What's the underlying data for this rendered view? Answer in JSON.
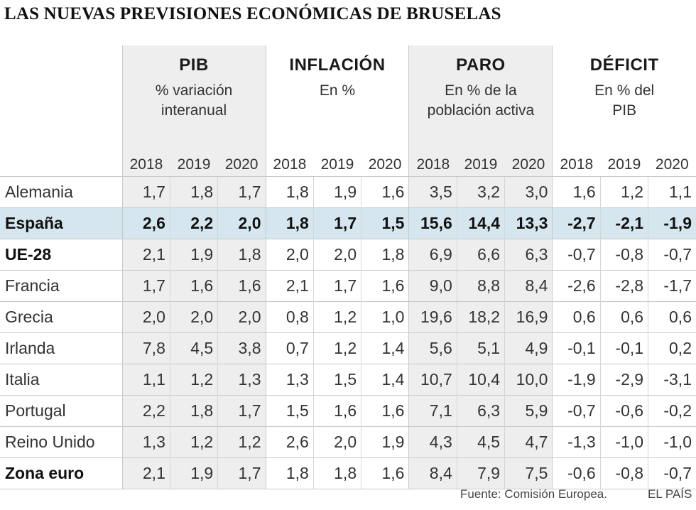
{
  "title": "LAS NUEVAS PREVISIONES ECONÓMICAS DE BRUSELAS",
  "footer": {
    "source": "Fuente: Comisión Europea.",
    "brand": "EL PAÍS"
  },
  "chart_data": {
    "type": "table",
    "title": "LAS NUEVAS PREVISIONES ECONÓMICAS DE BRUSELAS",
    "groups": [
      {
        "name": "PIB",
        "subtitle": [
          "% variación",
          "interanual"
        ],
        "years": [
          "2018",
          "2019",
          "2020"
        ]
      },
      {
        "name": "INFLACIÓN",
        "subtitle": [
          "En %"
        ],
        "years": [
          "2018",
          "2019",
          "2020"
        ]
      },
      {
        "name": "PARO",
        "subtitle": [
          "En % de la",
          "población activa"
        ],
        "years": [
          "2018",
          "2019",
          "2020"
        ]
      },
      {
        "name": "DÉFICIT",
        "subtitle": [
          "En % del",
          "PIB"
        ],
        "years": [
          "2018",
          "2019",
          "2020"
        ]
      }
    ],
    "rows": [
      {
        "label": "Alemania",
        "bold": false,
        "highlight": false,
        "values": [
          "1,7",
          "1,8",
          "1,7",
          "1,8",
          "1,9",
          "1,6",
          "3,5",
          "3,2",
          "3,0",
          "1,6",
          "1,2",
          "1,1"
        ]
      },
      {
        "label": "España",
        "bold": true,
        "highlight": true,
        "values": [
          "2,6",
          "2,2",
          "2,0",
          "1,8",
          "1,7",
          "1,5",
          "15,6",
          "14,4",
          "13,3",
          "-2,7",
          "-2,1",
          "-1,9"
        ]
      },
      {
        "label": "UE-28",
        "bold": true,
        "highlight": false,
        "values": [
          "2,1",
          "1,9",
          "1,8",
          "2,0",
          "2,0",
          "1,8",
          "6,9",
          "6,6",
          "6,3",
          "-0,7",
          "-0,8",
          "-0,7"
        ]
      },
      {
        "label": "Francia",
        "bold": false,
        "highlight": false,
        "values": [
          "1,7",
          "1,6",
          "1,6",
          "2,1",
          "1,7",
          "1,6",
          "9,0",
          "8,8",
          "8,4",
          "-2,6",
          "-2,8",
          "-1,7"
        ]
      },
      {
        "label": "Grecia",
        "bold": false,
        "highlight": false,
        "values": [
          "2,0",
          "2,0",
          "2,0",
          "0,8",
          "1,2",
          "1,0",
          "19,6",
          "18,2",
          "16,9",
          "0,6",
          "0,6",
          "0,6"
        ]
      },
      {
        "label": "Irlanda",
        "bold": false,
        "highlight": false,
        "values": [
          "7,8",
          "4,5",
          "3,8",
          "0,7",
          "1,2",
          "1,4",
          "5,6",
          "5,1",
          "4,9",
          "-0,1",
          "-0,1",
          "0,2"
        ]
      },
      {
        "label": "Italia",
        "bold": false,
        "highlight": false,
        "values": [
          "1,1",
          "1,2",
          "1,3",
          "1,3",
          "1,5",
          "1,4",
          "10,7",
          "10,4",
          "10,0",
          "-1,9",
          "-2,9",
          "-3,1"
        ]
      },
      {
        "label": "Portugal",
        "bold": false,
        "highlight": false,
        "values": [
          "2,2",
          "1,8",
          "1,7",
          "1,5",
          "1,6",
          "1,6",
          "7,1",
          "6,3",
          "5,9",
          "-0,7",
          "-0,6",
          "-0,2"
        ]
      },
      {
        "label": "Reino Unido",
        "bold": false,
        "highlight": false,
        "values": [
          "1,3",
          "1,2",
          "1,2",
          "2,6",
          "2,0",
          "1,9",
          "4,3",
          "4,5",
          "4,7",
          "-1,3",
          "-1,0",
          "-1,0"
        ]
      },
      {
        "label": "Zona euro",
        "bold": true,
        "highlight": false,
        "values": [
          "2,1",
          "1,9",
          "1,7",
          "1,8",
          "1,8",
          "1,6",
          "8,4",
          "7,9",
          "7,5",
          "-0,6",
          "-0,8",
          "-0,7"
        ]
      }
    ],
    "colors": {
      "shaded_columns": "#eeeeee",
      "highlight_row": "#d5e6ef",
      "rule": "#c9c9c9"
    }
  }
}
